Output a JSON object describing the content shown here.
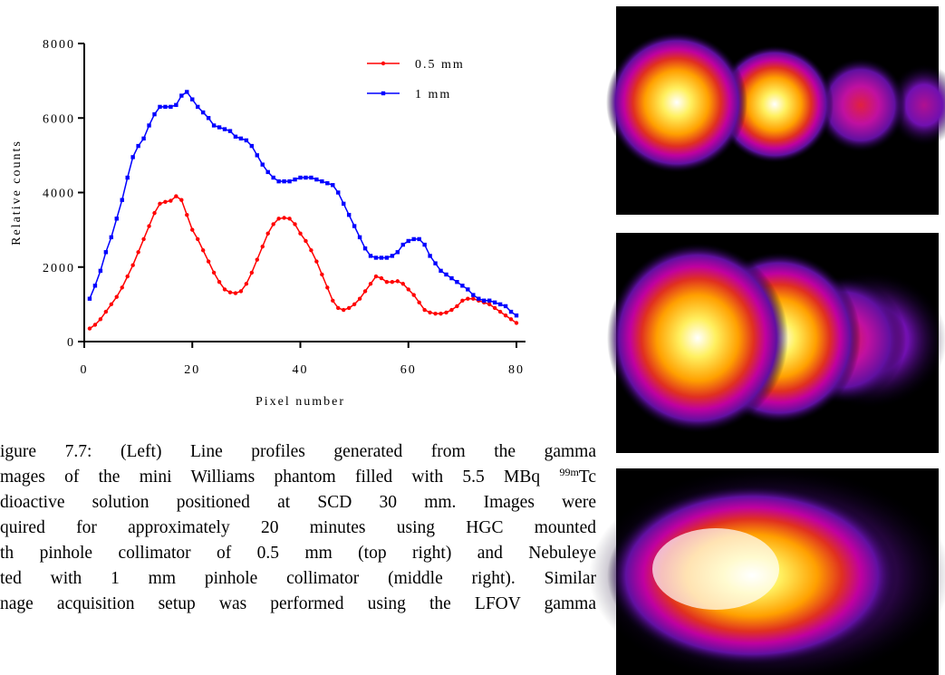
{
  "chart_data": {
    "type": "line",
    "x": [
      1,
      2,
      3,
      4,
      5,
      6,
      7,
      8,
      9,
      10,
      11,
      12,
      13,
      14,
      15,
      16,
      17,
      18,
      19,
      20,
      21,
      22,
      23,
      24,
      25,
      26,
      27,
      28,
      29,
      30,
      31,
      32,
      33,
      34,
      35,
      36,
      37,
      38,
      39,
      40,
      41,
      42,
      43,
      44,
      45,
      46,
      47,
      48,
      49,
      50,
      51,
      52,
      53,
      54,
      55,
      56,
      57,
      58,
      59,
      60,
      61,
      62,
      63,
      64,
      65,
      66,
      67,
      68,
      69,
      70,
      71,
      72,
      73,
      74,
      75,
      76,
      77,
      78,
      79,
      80
    ],
    "series": [
      {
        "name": "0.5 mm",
        "color": "#ff0000",
        "marker": "circle",
        "values": [
          350,
          450,
          600,
          800,
          1000,
          1200,
          1450,
          1750,
          2050,
          2400,
          2750,
          3100,
          3450,
          3700,
          3750,
          3780,
          3900,
          3800,
          3400,
          3000,
          2750,
          2450,
          2150,
          1850,
          1600,
          1400,
          1320,
          1300,
          1350,
          1550,
          1850,
          2200,
          2550,
          2900,
          3150,
          3300,
          3320,
          3300,
          3150,
          2900,
          2700,
          2450,
          2150,
          1800,
          1450,
          1100,
          900,
          850,
          900,
          1000,
          1150,
          1350,
          1550,
          1750,
          1700,
          1600,
          1600,
          1620,
          1550,
          1400,
          1250,
          1050,
          850,
          780,
          750,
          750,
          780,
          850,
          950,
          1100,
          1150,
          1150,
          1100,
          1050,
          1000,
          900,
          800,
          700,
          600,
          500
        ]
      },
      {
        "name": "1 mm",
        "color": "#0000ff",
        "marker": "square",
        "values": [
          1150,
          1500,
          1900,
          2400,
          2800,
          3300,
          3800,
          4400,
          4950,
          5250,
          5450,
          5800,
          6100,
          6300,
          6300,
          6300,
          6350,
          6600,
          6700,
          6500,
          6300,
          6150,
          6000,
          5800,
          5750,
          5700,
          5650,
          5500,
          5450,
          5400,
          5250,
          5000,
          4750,
          4550,
          4400,
          4300,
          4300,
          4300,
          4350,
          4400,
          4400,
          4400,
          4350,
          4300,
          4250,
          4200,
          4000,
          3700,
          3400,
          3100,
          2800,
          2500,
          2300,
          2250,
          2250,
          2250,
          2300,
          2400,
          2600,
          2700,
          2750,
          2750,
          2600,
          2300,
          2100,
          1900,
          1800,
          1700,
          1600,
          1500,
          1400,
          1250,
          1150,
          1100,
          1100,
          1050,
          1000,
          950,
          800,
          700
        ]
      }
    ],
    "xlabel": "Pixel number",
    "ylabel": "Relative counts",
    "xlim": [
      0,
      80
    ],
    "xticks": [
      0,
      20,
      40,
      60,
      80
    ],
    "ylim": [
      0,
      8000
    ],
    "yticks": [
      0,
      2000,
      4000,
      6000,
      8000
    ],
    "grid": false,
    "legend": "upper right"
  },
  "caption": {
    "lines": [
      "igure 7.7: (Left) Line profiles generated from the gamma",
      {
        "text": "mages of the mini Williams phantom filled with 5.5 MBq ",
        "sup": "99m",
        "after": "Tc"
      },
      "dioactive solution positioned at SCD 30 mm. Images were",
      "quired for approximately 20 minutes using HGC mounted",
      "th pinhole collimator of 0.5 mm (top right) and Nebuleye",
      "ted with 1 mm pinhole collimator (middle right). Similar",
      "nage acquisition setup was performed using the LFOV gamma"
    ]
  }
}
